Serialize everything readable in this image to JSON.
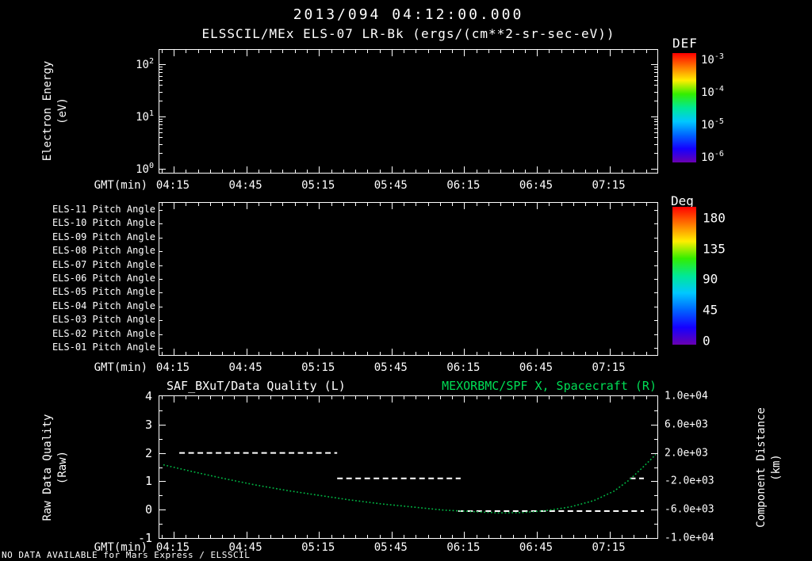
{
  "colors": {
    "background": "#000000",
    "foreground": "#ffffff",
    "accent_green": "#00dd55",
    "curve_green": "#00b844"
  },
  "header": {
    "timestamp": "2013/094 04:12:00.000",
    "title": "ELSSCIL/MEx ELS-07 LR-Bk (ergs/(cm**2-sr-sec-eV))"
  },
  "axes": {
    "xlabel": "GMT(min)",
    "xticks": [
      "04:15",
      "04:45",
      "05:15",
      "05:45",
      "06:15",
      "06:45",
      "07:15"
    ]
  },
  "panel1": {
    "ylabel_line1": "Electron Energy",
    "ylabel_line2": "(eV)",
    "yticks": [
      {
        "base": "10",
        "exp": "2"
      },
      {
        "base": "10",
        "exp": "1"
      },
      {
        "base": "10",
        "exp": "0"
      }
    ]
  },
  "colorbars": {
    "def": {
      "title": "DEF",
      "ticks": [
        {
          "base": "10",
          "exp": "-3"
        },
        {
          "base": "10",
          "exp": "-4"
        },
        {
          "base": "10",
          "exp": "-5"
        },
        {
          "base": "10",
          "exp": "-6"
        }
      ],
      "gradient": [
        "#ff0000",
        "#ff7700",
        "#ffee00",
        "#33ee00",
        "#00e896",
        "#00c8ff",
        "#0064ff",
        "#1500ff",
        "#6a00b0"
      ]
    },
    "deg": {
      "title": "Deg",
      "ticks": [
        "180",
        "135",
        "90",
        "45",
        "0"
      ],
      "gradient": [
        "#ff0000",
        "#ff7700",
        "#ffee00",
        "#33ee00",
        "#00e896",
        "#00c8ff",
        "#0064ff",
        "#1500ff",
        "#6a00b0"
      ]
    }
  },
  "panel2": {
    "rows": [
      "ELS-11 Pitch Angle",
      "ELS-10 Pitch Angle",
      "ELS-09 Pitch Angle",
      "ELS-08 Pitch Angle",
      "ELS-07 Pitch Angle",
      "ELS-06 Pitch Angle",
      "ELS-05 Pitch Angle",
      "ELS-04 Pitch Angle",
      "ELS-03 Pitch Angle",
      "ELS-02 Pitch Angle",
      "ELS-01 Pitch Angle"
    ]
  },
  "panel3": {
    "ylabel_left_line1": "Raw Data Quality",
    "ylabel_left_line2": "(Raw)",
    "ylabel_right_line1": "Component Distance",
    "ylabel_right_line2": "(km)"
  },
  "footer": {
    "no_data": "NO DATA AVAILABLE for Mars Express / ELSSCIL"
  },
  "chart_data": [
    {
      "type": "heatmap",
      "title": "ELSSCIL/MEx ELS-07 LR-Bk (ergs/(cm**2-sr-sec-eV))",
      "ylabel": "Electron Energy (eV)",
      "yticks": [
        "10^2",
        "10^1",
        "10^0"
      ],
      "yscale": "log",
      "xlabel": "GMT(min)",
      "xticks": [
        "04:15",
        "04:45",
        "05:15",
        "05:45",
        "06:15",
        "06:45",
        "07:15"
      ],
      "colorbar": {
        "title": "DEF",
        "ticks": [
          "10^-3",
          "10^-4",
          "10^-5",
          "10^-6"
        ]
      },
      "values": []
    },
    {
      "type": "heatmap",
      "title": "Pitch Angle panels ELS-11 .. ELS-01",
      "rows": [
        "ELS-11",
        "ELS-10",
        "ELS-09",
        "ELS-08",
        "ELS-07",
        "ELS-06",
        "ELS-05",
        "ELS-04",
        "ELS-03",
        "ELS-02",
        "ELS-01"
      ],
      "xlabel": "GMT(min)",
      "xticks": [
        "04:15",
        "04:45",
        "05:15",
        "05:45",
        "06:15",
        "06:45",
        "07:15"
      ],
      "colorbar": {
        "title": "Deg",
        "ticks": [
          "180",
          "135",
          "90",
          "45",
          "0"
        ]
      },
      "values": []
    },
    {
      "type": "line",
      "title_left": "SAF_BXuT/Data Quality (L)",
      "title_right": "MEXORBMC/SPF X, Spacecraft (R)",
      "xlabel": "GMT(min)",
      "xticks": [
        "04:15",
        "04:45",
        "05:15",
        "05:45",
        "06:15",
        "06:45",
        "07:15"
      ],
      "grid": false,
      "legend": "none",
      "left_axis": {
        "label": "Raw Data Quality (Raw)",
        "range": [
          -1,
          4
        ],
        "tick_labels": [
          "4",
          "3",
          "2",
          "1",
          "0",
          "-1"
        ]
      },
      "right_axis": {
        "label": "Component Distance (km)",
        "range": [
          -10000,
          10000
        ],
        "tick_labels": [
          "1.0e+04",
          "6.0e+03",
          "2.0e+03",
          "-2.0e+03",
          "-6.0e+03",
          "-1.0e+04"
        ]
      },
      "series": [
        {
          "name": "SAF_BXuT/Data Quality",
          "axis": "left",
          "color": "#ffffff",
          "style": "dashed",
          "segments": [
            {
              "x_frac": [
                0.04,
                0.357
              ],
              "value": 2.0
            },
            {
              "x_frac": [
                0.357,
                0.605
              ],
              "value": 1.1
            },
            {
              "x_frac": [
                0.6,
                0.973
              ],
              "value": -0.05
            },
            {
              "x_frac": [
                0.945,
                0.973
              ],
              "value": 1.1
            }
          ]
        },
        {
          "name": "MEXORBMC/SPF X Spacecraft",
          "axis": "right",
          "color": "#00b844",
          "style": "dotted",
          "points": [
            [
              0.008,
              320
            ],
            [
              0.063,
              -580
            ],
            [
              0.127,
              -1580
            ],
            [
              0.19,
              -2480
            ],
            [
              0.254,
              -3270
            ],
            [
              0.317,
              -3940
            ],
            [
              0.381,
              -4610
            ],
            [
              0.444,
              -5170
            ],
            [
              0.508,
              -5620
            ],
            [
              0.571,
              -6070
            ],
            [
              0.635,
              -6290
            ],
            [
              0.683,
              -6460
            ],
            [
              0.73,
              -6400
            ],
            [
              0.778,
              -6120
            ],
            [
              0.825,
              -5620
            ],
            [
              0.873,
              -4720
            ],
            [
              0.913,
              -3380
            ],
            [
              0.944,
              -1800
            ],
            [
              0.971,
              -10
            ],
            [
              0.997,
              1780
            ]
          ]
        }
      ]
    }
  ]
}
